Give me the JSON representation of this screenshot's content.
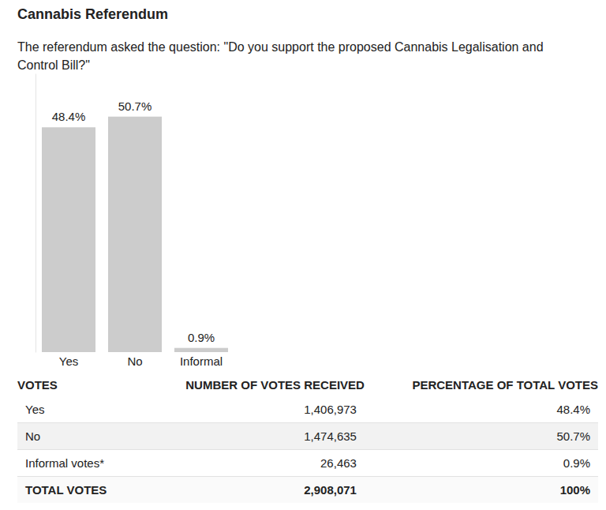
{
  "chart_data": {
    "type": "bar",
    "title": "Cannabis Referendum",
    "subtitle": "The referendum asked the question: \"Do you support the proposed Cannabis Legalisation and Control Bill?\"",
    "categories": [
      "Yes",
      "No",
      "Informal"
    ],
    "values": [
      48.4,
      50.7,
      0.9
    ],
    "value_labels": [
      "48.4%",
      "50.7%",
      "0.9%"
    ],
    "color": "#cccccc",
    "ylim": [
      0,
      60
    ],
    "data_labels": true,
    "tick_labels": "x"
  },
  "table": {
    "columns": [
      "VOTES",
      "NUMBER OF VOTES RECEIVED",
      "PERCENTAGE OF TOTAL VOTES"
    ],
    "rows": [
      [
        "Yes",
        "1,406,973",
        "48.4%"
      ],
      [
        "No",
        "1,474,635",
        "50.7%"
      ],
      [
        "Informal votes*",
        "26,463",
        "0.9%"
      ]
    ],
    "total": [
      "TOTAL VOTES",
      "2,908,071",
      "100%"
    ]
  }
}
